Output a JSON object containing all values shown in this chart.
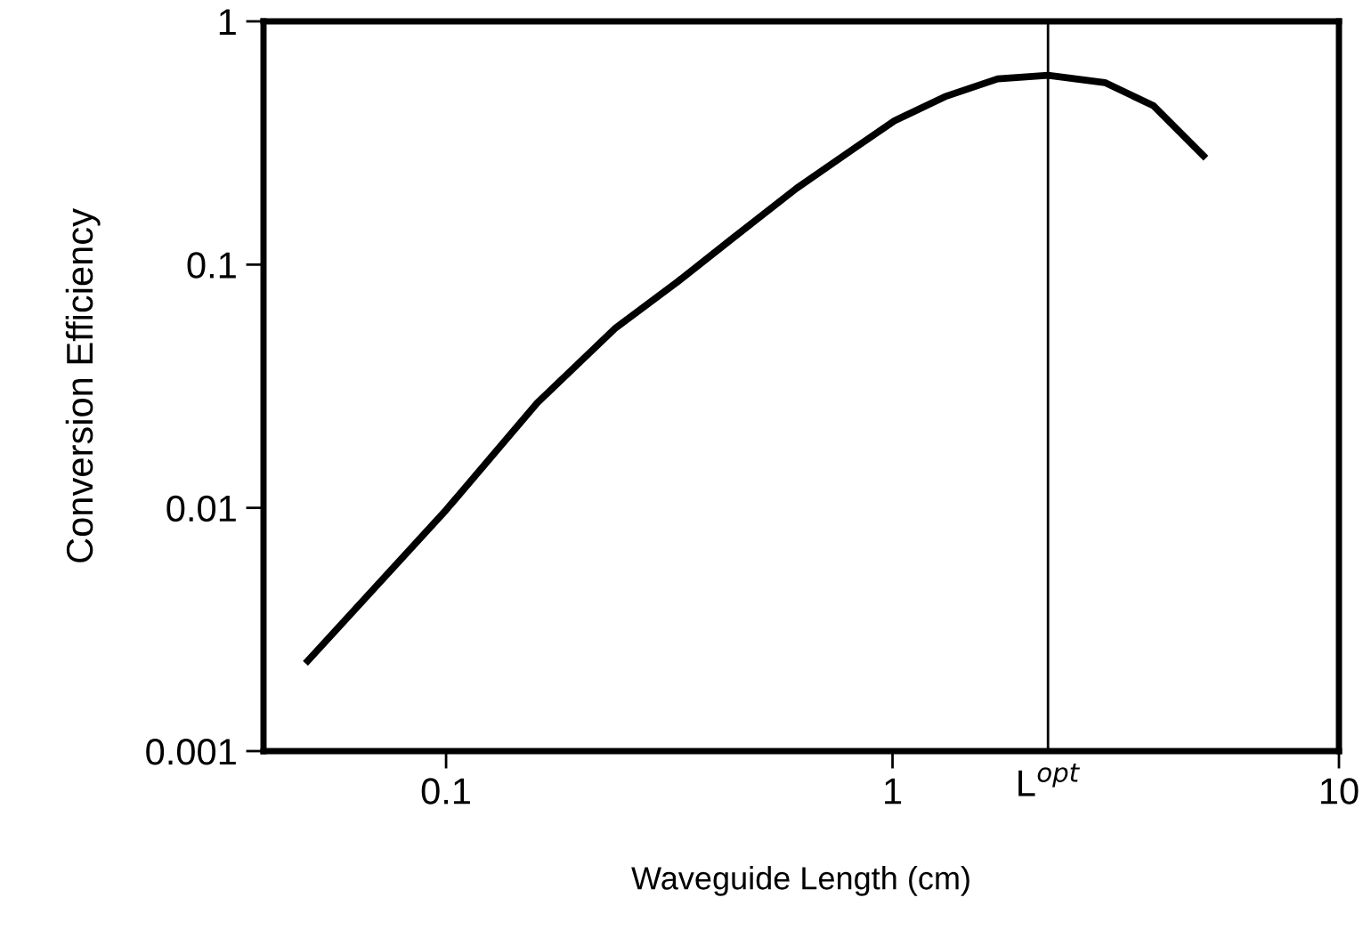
{
  "chart_data": {
    "type": "line",
    "xlabel": "Waveguide Length (cm)",
    "ylabel": "Conversion Efficiency",
    "log": "xy",
    "x": [
      0.049,
      0.1,
      0.16,
      0.24,
      0.33,
      0.44,
      0.61,
      0.82,
      1.01,
      1.31,
      1.72,
      2.23,
      2.99,
      3.84,
      4.97
    ],
    "series": [
      {
        "color": "#000000",
        "values": [
          0.00235,
          0.0098,
          0.027,
          0.055,
          0.085,
          0.129,
          0.206,
          0.3,
          0.39,
          0.49,
          0.58,
          0.6,
          0.56,
          0.45,
          0.28
        ]
      }
    ],
    "xlim": [
      0.039,
      10
    ],
    "ylim": [
      0.001,
      1
    ],
    "xticks": [
      0.1,
      1,
      10
    ],
    "yticks": [
      0.001,
      0.01,
      0.1,
      1
    ],
    "ref_lines": [
      {
        "axis": "x",
        "value": 2.23,
        "label": "L$^{opt}$",
        "color": "#000000"
      }
    ],
    "grid": false,
    "legend": false,
    "marker": "none",
    "line_style": "solid"
  }
}
